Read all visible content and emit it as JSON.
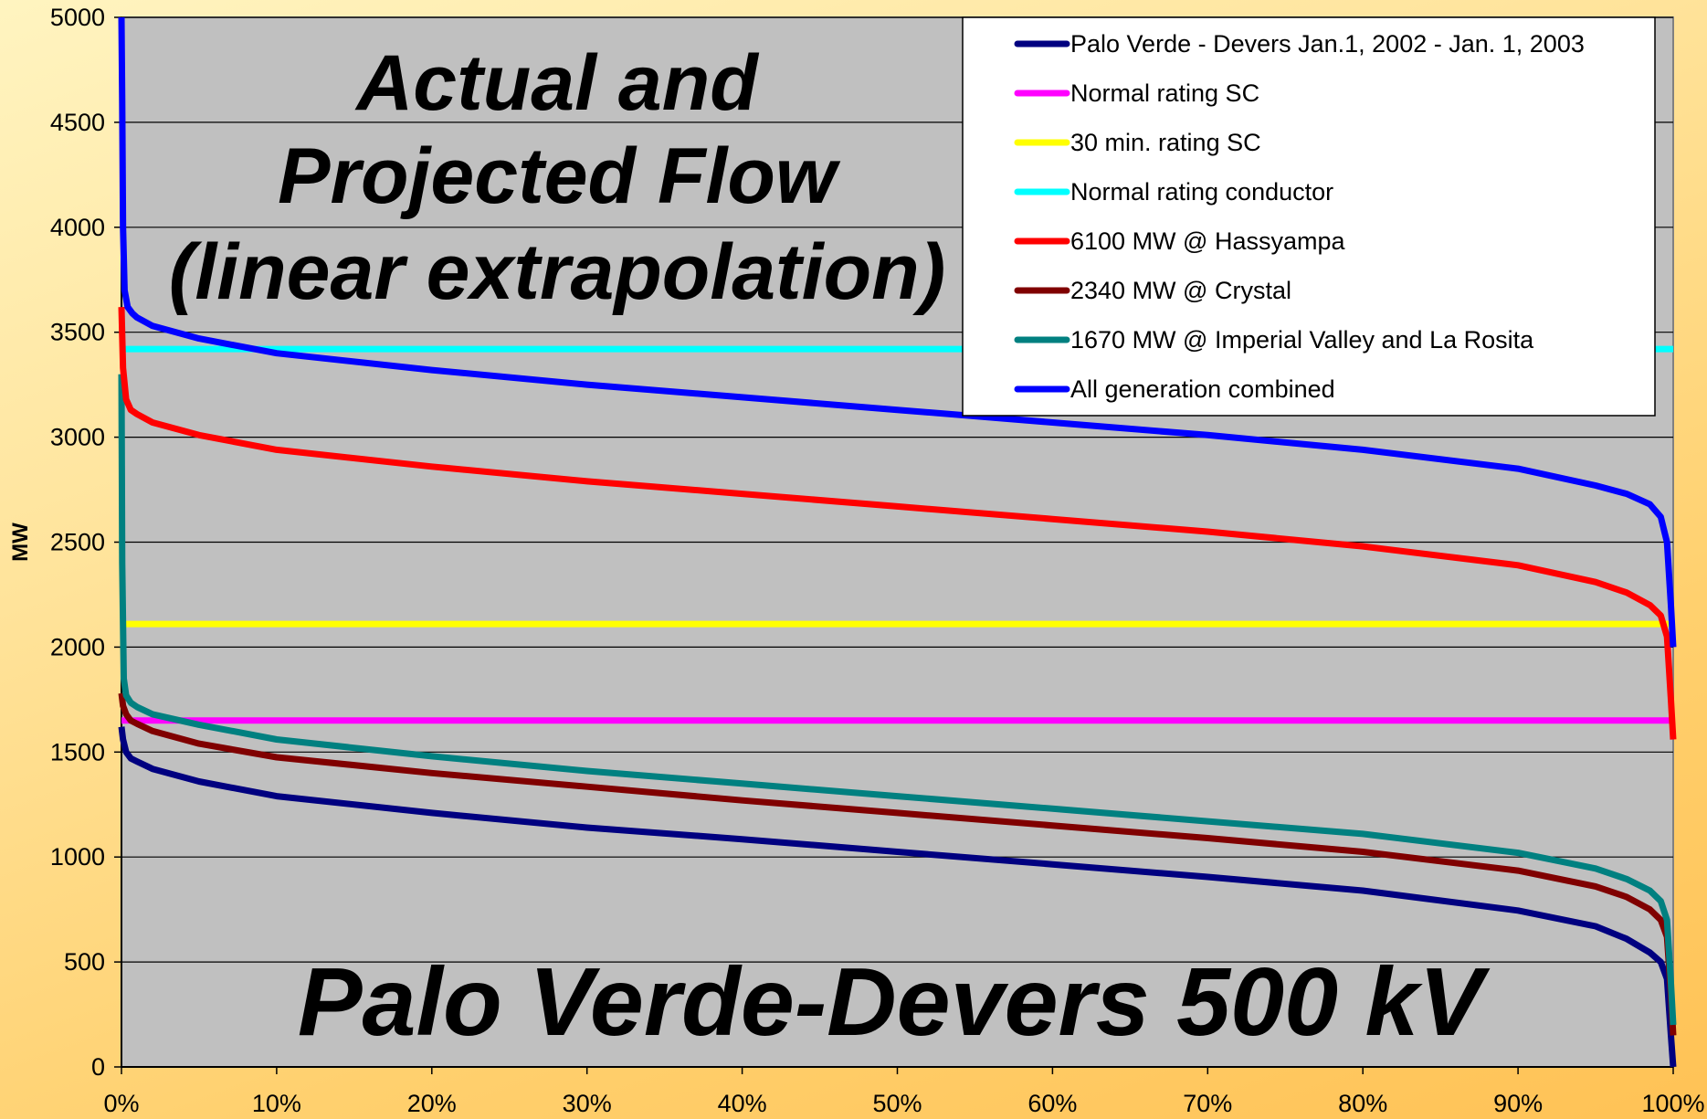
{
  "chart_data": {
    "type": "line",
    "title": "Actual and Projected Flow (linear extrapolation)",
    "title_lines": [
      "Actual and",
      "Projected Flow",
      "(linear extrapolation)"
    ],
    "subtitle": "Palo Verde-Devers 500 kV",
    "xlabel": "",
    "ylabel": "MW",
    "xlim": [
      0,
      100
    ],
    "ylim": [
      0,
      5000
    ],
    "x_ticks": [
      0,
      10,
      20,
      30,
      40,
      50,
      60,
      70,
      80,
      90,
      100
    ],
    "x_tick_labels": [
      "0%",
      "10%",
      "20%",
      "30%",
      "40%",
      "50%",
      "60%",
      "70%",
      "80%",
      "90%",
      "100%"
    ],
    "y_ticks": [
      0,
      500,
      1000,
      1500,
      2000,
      2500,
      3000,
      3500,
      4000,
      4500,
      5000
    ],
    "y_tick_labels": [
      "0",
      "500",
      "1000",
      "1500",
      "2000",
      "2500",
      "3000",
      "3500",
      "4000",
      "4500",
      "5000"
    ],
    "grid": "horizontal",
    "legend_position": "top-right",
    "plot_background": "#C0C0C0",
    "series": [
      {
        "name": "Palo Verde - Devers Jan.1, 2002 - Jan. 1, 2003",
        "color": "#000080",
        "x": [
          0,
          0.1,
          0.3,
          0.6,
          1,
          2,
          5,
          10,
          20,
          30,
          40,
          50,
          60,
          70,
          80,
          90,
          95,
          97,
          98.5,
          99.2,
          99.6,
          99.85,
          100
        ],
        "y": [
          1620,
          1560,
          1500,
          1470,
          1455,
          1420,
          1360,
          1290,
          1210,
          1140,
          1085,
          1025,
          965,
          905,
          840,
          745,
          670,
          610,
          545,
          500,
          420,
          150,
          0
        ]
      },
      {
        "name": "Normal rating SC",
        "color": "#FF00FF",
        "x": [
          0,
          100
        ],
        "y": [
          1650,
          1650
        ]
      },
      {
        "name": "30 min. rating SC",
        "color": "#FFFF00",
        "x": [
          0,
          100
        ],
        "y": [
          2110,
          2110
        ]
      },
      {
        "name": "Normal rating conductor",
        "color": "#00FFFF",
        "x": [
          0,
          100
        ],
        "y": [
          3420,
          3420
        ]
      },
      {
        "name": "6100 MW @ Hassyampa",
        "color": "#FF0000",
        "x": [
          0,
          0.1,
          0.3,
          0.6,
          1,
          2,
          5,
          10,
          20,
          30,
          40,
          50,
          60,
          70,
          80,
          90,
          95,
          97,
          98.5,
          99.2,
          99.6,
          99.85,
          100
        ],
        "y": [
          3620,
          3330,
          3180,
          3130,
          3110,
          3070,
          3010,
          2940,
          2860,
          2790,
          2730,
          2670,
          2610,
          2550,
          2480,
          2390,
          2310,
          2260,
          2200,
          2150,
          2050,
          1750,
          1560
        ]
      },
      {
        "name": "2340 MW @ Crystal",
        "color": "#800000",
        "x": [
          0,
          0.1,
          0.3,
          0.6,
          1,
          2,
          5,
          10,
          20,
          30,
          40,
          50,
          60,
          70,
          80,
          90,
          95,
          97,
          98.5,
          99.2,
          99.6,
          99.85,
          100
        ],
        "y": [
          1780,
          1720,
          1680,
          1650,
          1635,
          1600,
          1540,
          1475,
          1400,
          1335,
          1270,
          1210,
          1150,
          1090,
          1025,
          935,
          860,
          810,
          750,
          700,
          620,
          350,
          150
        ]
      },
      {
        "name": "1670 MW @ Imperial Valley and La Rosita",
        "color": "#008080",
        "x": [
          0,
          0.05,
          0.15,
          0.3,
          0.6,
          1,
          2,
          5,
          10,
          20,
          30,
          40,
          50,
          60,
          70,
          80,
          90,
          95,
          97,
          98.5,
          99.2,
          99.6,
          99.85,
          100
        ],
        "y": [
          3300,
          2400,
          1850,
          1770,
          1735,
          1715,
          1680,
          1630,
          1560,
          1480,
          1410,
          1350,
          1290,
          1230,
          1170,
          1110,
          1020,
          945,
          895,
          840,
          790,
          700,
          400,
          200
        ]
      },
      {
        "name": "All generation combined",
        "color": "#0000FF",
        "x": [
          0,
          0.05,
          0.1,
          0.2,
          0.4,
          0.7,
          1,
          2,
          5,
          10,
          20,
          30,
          40,
          50,
          60,
          70,
          80,
          90,
          95,
          97,
          98.5,
          99.2,
          99.6,
          99.85,
          100
        ],
        "y": [
          5000,
          4600,
          4000,
          3700,
          3620,
          3590,
          3570,
          3530,
          3470,
          3400,
          3320,
          3250,
          3190,
          3130,
          3070,
          3010,
          2940,
          2850,
          2770,
          2730,
          2680,
          2620,
          2500,
          2200,
          2000
        ]
      }
    ]
  }
}
